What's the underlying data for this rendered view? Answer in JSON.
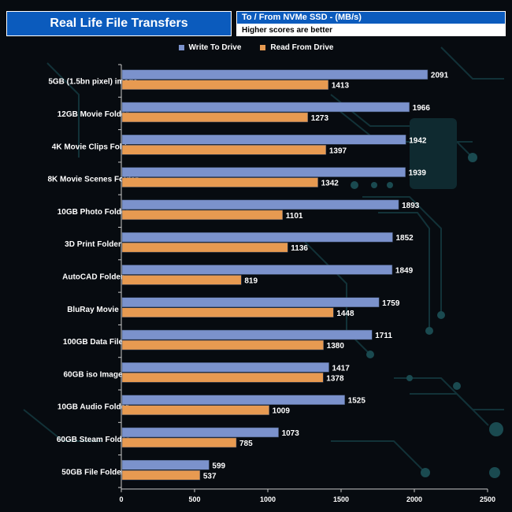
{
  "header": {
    "title": "Real Life File Transfers",
    "subtitle": "To /  From NVMe  SSD - (MB/s)",
    "note": "Higher scores are better"
  },
  "colors": {
    "write": "#7b92cc",
    "read": "#e79a51",
    "header_bg": "#0b5bbd"
  },
  "chart_data": {
    "type": "bar",
    "orientation": "horizontal",
    "title": "Real Life File Transfers",
    "xlabel": "",
    "ylabel": "",
    "xlim": [
      0,
      2500
    ],
    "xticks": [
      0,
      500,
      1000,
      1500,
      2000,
      2500
    ],
    "legend_position": "top-center",
    "categories": [
      "5GB (1.5bn pixel) image",
      "12GB Movie Folder",
      "4K Movie Clips Folder",
      "8K Movie Scenes Folder",
      "10GB Photo Folder",
      "3D Print Folder",
      "AutoCAD Folder",
      "BluRay Movie",
      "100GB Data File",
      "60GB iso Image",
      "10GB Audio Folder",
      "60GB Steam Folder",
      "50GB File Folder"
    ],
    "series": [
      {
        "name": "Write To  Drive",
        "values": [
          2091,
          1966,
          1942,
          1939,
          1893,
          1852,
          1849,
          1759,
          1711,
          1417,
          1525,
          1073,
          599
        ]
      },
      {
        "name": "Read From  Drive",
        "values": [
          1413,
          1273,
          1397,
          1342,
          1101,
          1136,
          819,
          1448,
          1380,
          1378,
          1009,
          785,
          537
        ]
      }
    ]
  }
}
